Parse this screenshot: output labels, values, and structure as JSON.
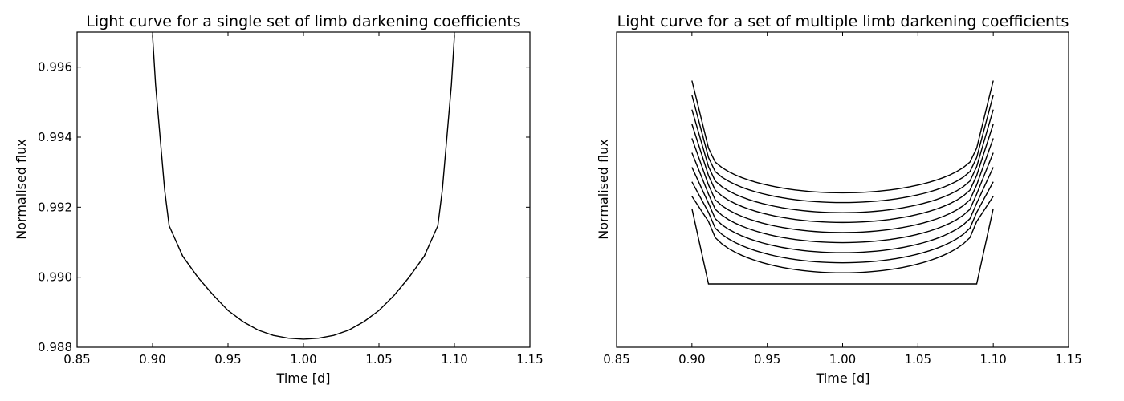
{
  "chart_data": [
    {
      "type": "line",
      "title": "Light curve for a single set of limb darkening coefficients",
      "xlabel": "Time [d]",
      "ylabel": "Normalised flux",
      "xlim": [
        0.85,
        1.15
      ],
      "ylim": [
        0.988,
        0.997
      ],
      "xticks": [
        "0.85",
        "0.90",
        "0.95",
        "1.00",
        "1.05",
        "1.10",
        "1.15"
      ],
      "yticks": [
        "0.988",
        "0.990",
        "0.992",
        "0.994",
        "0.996"
      ],
      "grid": false,
      "series": [
        {
          "x": [
            0.9,
            0.902,
            0.905,
            0.908,
            0.911,
            0.92,
            0.93,
            0.94,
            0.95,
            0.96,
            0.97,
            0.98,
            0.99,
            1.0,
            1.01,
            1.02,
            1.03,
            1.04,
            1.05,
            1.06,
            1.07,
            1.08,
            1.089,
            1.092,
            1.095,
            1.098,
            1.1
          ],
          "y": [
            0.9969,
            0.9955,
            0.994,
            0.9925,
            0.99147,
            0.9906,
            0.99,
            0.9895,
            0.98905,
            0.98873,
            0.98849,
            0.98834,
            0.98826,
            0.98823,
            0.98826,
            0.98834,
            0.98849,
            0.98873,
            0.98905,
            0.98948,
            0.99,
            0.9906,
            0.99147,
            0.9925,
            0.994,
            0.9955,
            0.9969
          ]
        }
      ]
    },
    {
      "type": "line",
      "title": "Light curve for a set of multiple limb darkening coefficients",
      "xlabel": "Time [d]",
      "ylabel": "Normalised flux",
      "xlim": [
        0.85,
        1.15
      ],
      "ylim": [
        0,
        1
      ],
      "yaxis_tick_labels_shown": false,
      "xticks": [
        "0.85",
        "0.90",
        "0.95",
        "1.00",
        "1.05",
        "1.10",
        "1.15"
      ],
      "grid": false,
      "curves": [
        {
          "start": 0.846,
          "knee": 0.632,
          "min": 0.49
        },
        {
          "start": 0.8,
          "knee": 0.602,
          "min": 0.459
        },
        {
          "start": 0.754,
          "knee": 0.573,
          "min": 0.427
        },
        {
          "start": 0.708,
          "knee": 0.545,
          "min": 0.396
        },
        {
          "start": 0.663,
          "knee": 0.515,
          "min": 0.364
        },
        {
          "start": 0.617,
          "knee": 0.486,
          "min": 0.332
        },
        {
          "start": 0.571,
          "knee": 0.457,
          "min": 0.3
        },
        {
          "start": 0.525,
          "knee": 0.428,
          "min": 0.268
        },
        {
          "start": 0.479,
          "knee": 0.399,
          "min": 0.236
        },
        {
          "start": 0.44,
          "knee": 0.201,
          "min": 0.201
        }
      ],
      "curve_x": {
        "start": 0.9,
        "knee_left": 0.911,
        "center": 1.0,
        "knee_right": 1.089,
        "end": 1.1
      }
    }
  ]
}
